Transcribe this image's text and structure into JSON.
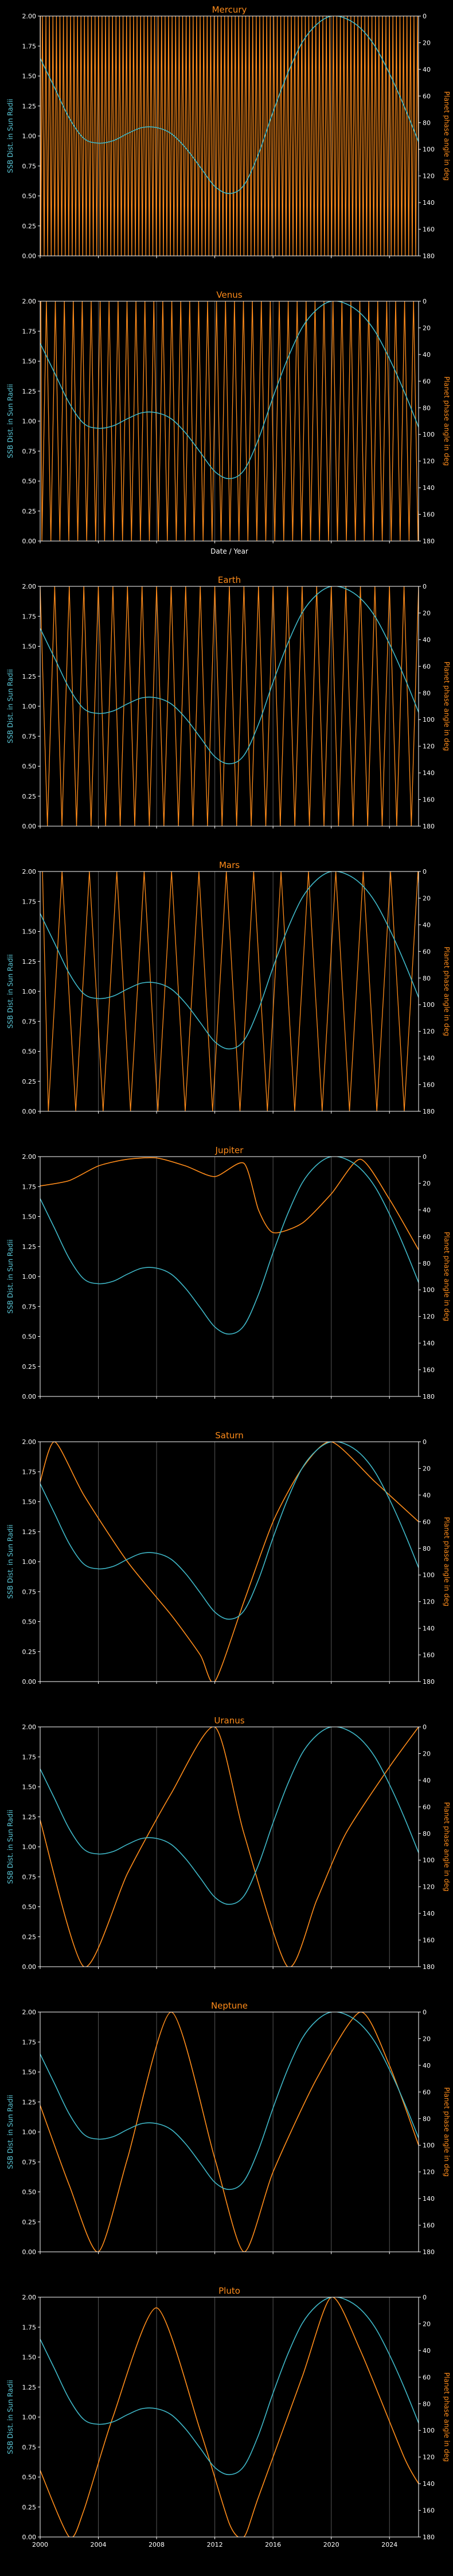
{
  "colors": {
    "background": "#000000",
    "distance_line": "#3fb8c8",
    "phase_line": "#ff8c1a",
    "axes": "#ffffff",
    "grid": "#555555"
  },
  "chart_data": {
    "type": "line",
    "shared": {
      "years": [
        2000,
        2001,
        2002,
        2003,
        2004,
        2005,
        2006,
        2007,
        2008,
        2009,
        2010,
        2011,
        2012,
        2013,
        2014,
        2015,
        2016,
        2017,
        2018,
        2019,
        2020,
        2021,
        2022,
        2023,
        2024,
        2025,
        2026
      ],
      "ssb_distance": [
        1.65,
        1.4,
        1.15,
        0.98,
        0.94,
        0.96,
        1.02,
        1.07,
        1.07,
        1.02,
        0.9,
        0.74,
        0.58,
        0.52,
        0.59,
        0.85,
        1.2,
        1.52,
        1.78,
        1.93,
        2.0,
        1.98,
        1.9,
        1.75,
        1.52,
        1.25,
        0.95
      ],
      "ylabel_left": "SSB Dist. in Sun Radii",
      "ylabel_right": "Planet phase angle in deg",
      "ylim_left": [
        0,
        2.0
      ],
      "ylim_right": [
        180,
        0
      ],
      "yticks_left": [
        "0.00",
        "0.25",
        "0.50",
        "0.75",
        "1.00",
        "1.25",
        "1.50",
        "1.75",
        "2.00"
      ],
      "yticks_right": [
        "0",
        "20",
        "40",
        "60",
        "80",
        "100",
        "120",
        "140",
        "160",
        "180"
      ],
      "xlim": [
        2000,
        2026
      ],
      "xticks": [
        "2000",
        "2004",
        "2008",
        "2012",
        "2016",
        "2020",
        "2024"
      ],
      "grid_x": true
    },
    "panels": [
      {
        "title": "Mercury",
        "period_years": 0.2408,
        "phase_offset": 0.35,
        "xlabel": "",
        "phase_angle": []
      },
      {
        "title": "Venus",
        "period_years": 0.6152,
        "phase_offset": 0.3,
        "xlabel": "Date / Year",
        "phase_angle": []
      },
      {
        "title": "Earth",
        "period_years": 1.0,
        "phase_offset": 0.0,
        "xlabel": "",
        "phase_angle": []
      },
      {
        "title": "Mars",
        "period_years": 1.8808,
        "phase_offset": 0.2,
        "xlabel": "",
        "phase_angle": []
      },
      {
        "title": "Jupiter",
        "period_years": null,
        "xlabel": "",
        "phase_angle": [
          [
            2000,
            22
          ],
          [
            2002,
            18
          ],
          [
            2004,
            7
          ],
          [
            2006,
            2
          ],
          [
            2008,
            1
          ],
          [
            2010,
            7
          ],
          [
            2012,
            15
          ],
          [
            2014,
            5
          ],
          [
            2015,
            40
          ],
          [
            2016,
            57
          ],
          [
            2018,
            50
          ],
          [
            2020,
            28
          ],
          [
            2022,
            2
          ],
          [
            2024,
            32
          ],
          [
            2026,
            70
          ]
        ]
      },
      {
        "title": "Saturn",
        "period_years": null,
        "xlabel": "",
        "phase_angle": [
          [
            2000,
            30
          ],
          [
            2001,
            0
          ],
          [
            2003,
            40
          ],
          [
            2006,
            90
          ],
          [
            2009,
            130
          ],
          [
            2011,
            160
          ],
          [
            2012,
            180
          ],
          [
            2014,
            120
          ],
          [
            2016,
            60
          ],
          [
            2018,
            20
          ],
          [
            2020,
            0
          ],
          [
            2023,
            30
          ],
          [
            2026,
            60
          ]
        ]
      },
      {
        "title": "Uranus",
        "period_years": null,
        "xlabel": "",
        "phase_angle": [
          [
            2000,
            70
          ],
          [
            2003,
            180
          ],
          [
            2006,
            110
          ],
          [
            2009,
            50
          ],
          [
            2012,
            0
          ],
          [
            2014,
            80
          ],
          [
            2017,
            180
          ],
          [
            2019,
            130
          ],
          [
            2021,
            80
          ],
          [
            2024,
            30
          ],
          [
            2026,
            0
          ]
        ]
      },
      {
        "title": "Neptune",
        "period_years": null,
        "xlabel": "",
        "phase_angle": [
          [
            2000,
            70
          ],
          [
            2002,
            130
          ],
          [
            2004,
            180
          ],
          [
            2006,
            110
          ],
          [
            2009,
            0
          ],
          [
            2012,
            110
          ],
          [
            2014,
            180
          ],
          [
            2016,
            120
          ],
          [
            2019,
            50
          ],
          [
            2022,
            0
          ],
          [
            2024,
            40
          ],
          [
            2026,
            100
          ]
        ]
      },
      {
        "title": "Pluto",
        "period_years": null,
        "xlabel": "",
        "phase_angle": [
          [
            2000,
            130
          ],
          [
            2002,
            180
          ],
          [
            2003,
            160
          ],
          [
            2005,
            90
          ],
          [
            2008,
            8
          ],
          [
            2011,
            100
          ],
          [
            2013,
            170
          ],
          [
            2014,
            180
          ],
          [
            2015,
            150
          ],
          [
            2018,
            60
          ],
          [
            2020,
            0
          ],
          [
            2022,
            40
          ],
          [
            2025,
            120
          ],
          [
            2026,
            140
          ]
        ]
      }
    ]
  }
}
